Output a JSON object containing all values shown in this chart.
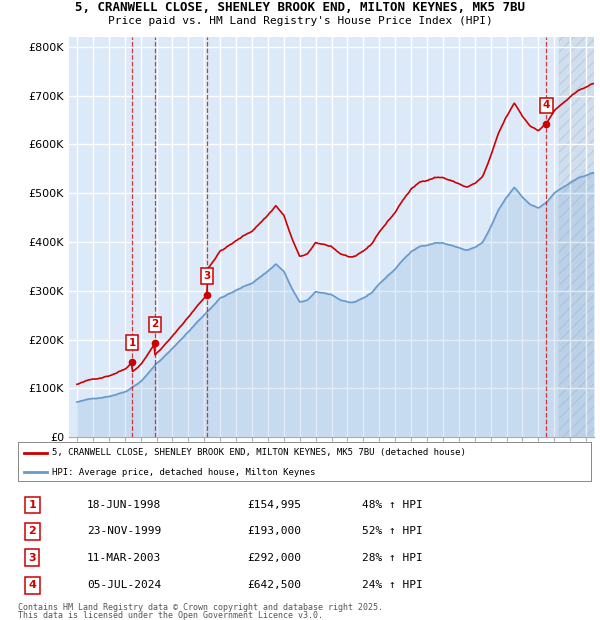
{
  "title_line1": "5, CRANWELL CLOSE, SHENLEY BROOK END, MILTON KEYNES, MK5 7BU",
  "title_line2": "Price paid vs. HM Land Registry's House Price Index (HPI)",
  "ylim": [
    0,
    820000
  ],
  "yticks": [
    0,
    100000,
    200000,
    300000,
    400000,
    500000,
    600000,
    700000,
    800000
  ],
  "ytick_labels": [
    "£0",
    "£100K",
    "£200K",
    "£300K",
    "£400K",
    "£500K",
    "£600K",
    "£700K",
    "£800K"
  ],
  "xlim_start": 1994.5,
  "xlim_end": 2027.5,
  "sale_years_num": [
    1998.46,
    1999.9,
    2003.19,
    2024.51
  ],
  "sale_prices": [
    154995,
    193000,
    292000,
    642500
  ],
  "sale_labels": [
    "1",
    "2",
    "3",
    "4"
  ],
  "sale_pcts": [
    "48% ↑ HPI",
    "52% ↑ HPI",
    "28% ↑ HPI",
    "24% ↑ HPI"
  ],
  "sale_date_strs": [
    "18-JUN-1998",
    "23-NOV-1999",
    "11-MAR-2003",
    "05-JUL-2024"
  ],
  "legend_label_red": "5, CRANWELL CLOSE, SHENLEY BROOK END, MILTON KEYNES, MK5 7BU (detached house)",
  "legend_label_blue": "HPI: Average price, detached house, Milton Keynes",
  "footnote_line1": "Contains HM Land Registry data © Crown copyright and database right 2025.",
  "footnote_line2": "This data is licensed under the Open Government Licence v3.0.",
  "bg_color": "#dce9f8",
  "grid_color": "#ffffff",
  "red_line_color": "#cc0000",
  "blue_line_color": "#6699cc",
  "future_hatch_color": "#c8d8e8"
}
